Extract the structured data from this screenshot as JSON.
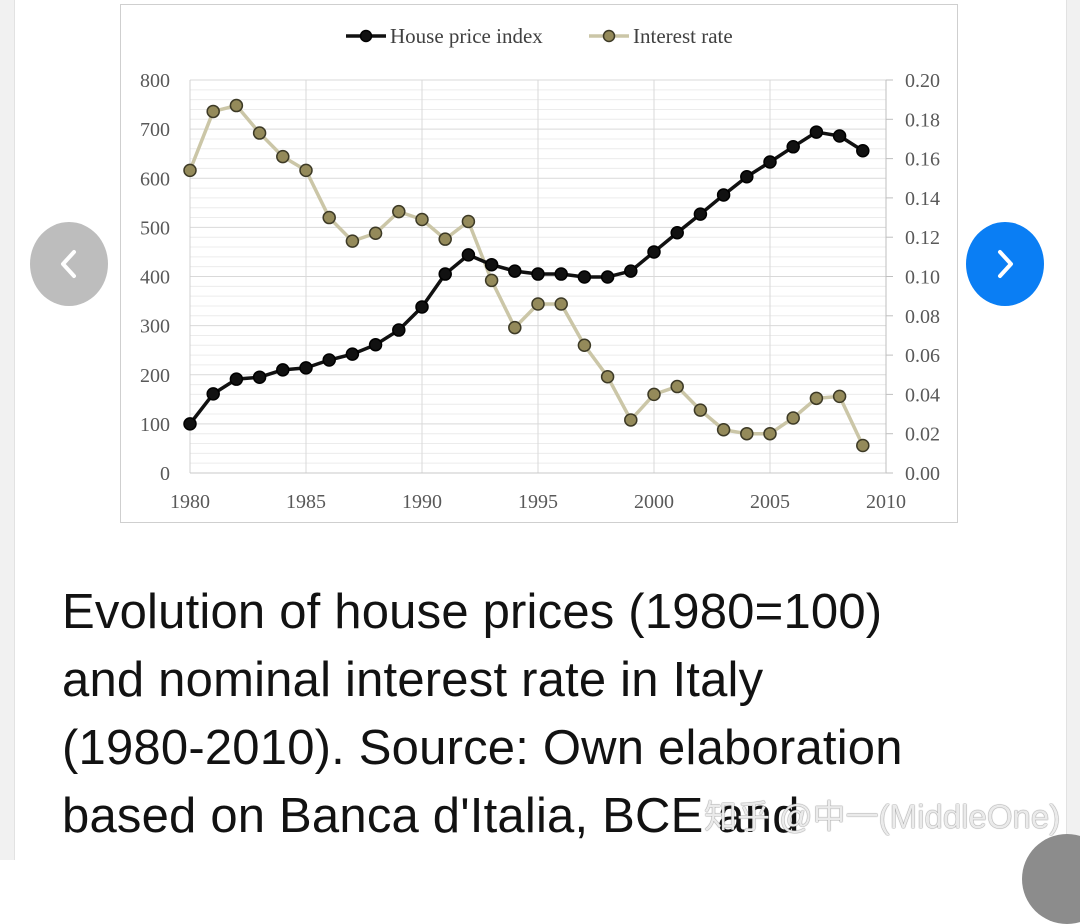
{
  "chart_data": {
    "type": "line",
    "title": "",
    "x": [
      1980,
      1981,
      1982,
      1983,
      1984,
      1985,
      1986,
      1987,
      1988,
      1989,
      1990,
      1991,
      1992,
      1993,
      1994,
      1995,
      1996,
      1997,
      1998,
      1999,
      2000,
      2001,
      2002,
      2003,
      2004,
      2005,
      2006,
      2007,
      2008,
      2009
    ],
    "series": [
      {
        "name": "House price index",
        "axis": "left",
        "color": "#111111",
        "marker_fill": "#111111",
        "values": [
          100,
          161,
          191,
          195,
          210,
          214,
          230,
          242,
          261,
          291,
          338,
          405,
          444,
          424,
          411,
          405,
          405,
          399,
          399,
          411,
          450,
          489,
          527,
          566,
          603,
          633,
          664,
          694,
          686,
          656
        ]
      },
      {
        "name": "Interest rate",
        "axis": "right",
        "color": "#cbc6a7",
        "marker_fill": "#948a5a",
        "values": [
          0.154,
          0.184,
          0.187,
          0.173,
          0.161,
          0.154,
          0.13,
          0.118,
          0.122,
          0.133,
          0.129,
          0.119,
          0.128,
          0.098,
          0.074,
          0.086,
          0.086,
          0.065,
          0.049,
          0.027,
          0.04,
          0.044,
          0.032,
          0.022,
          0.02,
          0.02,
          0.028,
          0.038,
          0.039,
          0.014
        ]
      }
    ],
    "xlim": [
      1980,
      2010
    ],
    "x_ticks": [
      "1980",
      "1985",
      "1990",
      "1995",
      "2000",
      "2005",
      "2010"
    ],
    "ylim_left": [
      0,
      800
    ],
    "y_ticks_left": [
      "0",
      "100",
      "200",
      "300",
      "400",
      "500",
      "600",
      "700",
      "800"
    ],
    "ylim_right": [
      0,
      0.2
    ],
    "y_ticks_right": [
      "0.00",
      "0.02",
      "0.04",
      "0.06",
      "0.08",
      "0.10",
      "0.12",
      "0.14",
      "0.16",
      "0.18",
      "0.20"
    ],
    "xlabel": "",
    "ylabel": "",
    "grid": true,
    "legend_position": "top-center"
  },
  "caption": {
    "lines": [
      "Evolution of house prices (1980=100)",
      "and nominal interest rate in Italy",
      "(1980-2010). Source: Own elaboration",
      "based on Banca d'Italia, BCE and"
    ]
  },
  "watermark": "知乎 @中一(MiddleOne)",
  "nav": {
    "prev_icon": "chevron-left-icon",
    "next_icon": "chevron-right-icon",
    "next_color": "#0a7ef4",
    "prev_color": "#bdbdbd"
  }
}
